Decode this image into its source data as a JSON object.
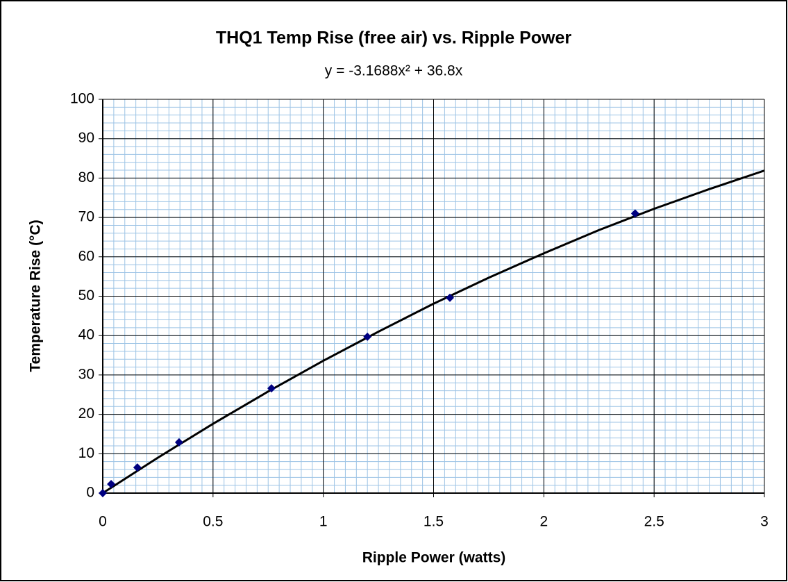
{
  "chart_data": {
    "type": "scatter",
    "title": "THQ1 Temp Rise (free air) vs. Ripple Power",
    "subtitle": "y = -3.1688x² + 36.8x",
    "x_label": "Ripple Power (watts)",
    "y_label": "Temperature Rise (°C)",
    "series": [
      {
        "name": "data",
        "color": "#000080",
        "x": [
          0,
          0.038,
          0.157,
          0.346,
          0.765,
          1.2,
          1.574,
          2.414
        ],
        "values": [
          0,
          2.3,
          6.5,
          12.9,
          26.6,
          39.7,
          49.6,
          71
        ]
      },
      {
        "name": "trendline",
        "color": "#000000",
        "x": [
          0,
          0.25,
          0.5,
          0.75,
          1,
          1.25,
          1.5,
          1.75,
          2,
          2.25,
          2.5,
          2.75,
          3
        ],
        "values": [
          0,
          9.0,
          17.6,
          25.8,
          33.6,
          41.0,
          48.1,
          54.7,
          60.9,
          66.8,
          72.2,
          77.2,
          81.9
        ]
      }
    ],
    "xlim": [
      0,
      3
    ],
    "ylim": [
      0,
      100
    ],
    "xticks": [
      0,
      0.5,
      1,
      1.5,
      2,
      2.5,
      3
    ],
    "yticks": [
      0,
      10,
      20,
      30,
      40,
      50,
      60,
      70,
      80,
      90,
      100
    ],
    "grid": true,
    "minor_grid": {
      "x": 0.05,
      "y": 2,
      "color": "#9cc3e5"
    }
  }
}
